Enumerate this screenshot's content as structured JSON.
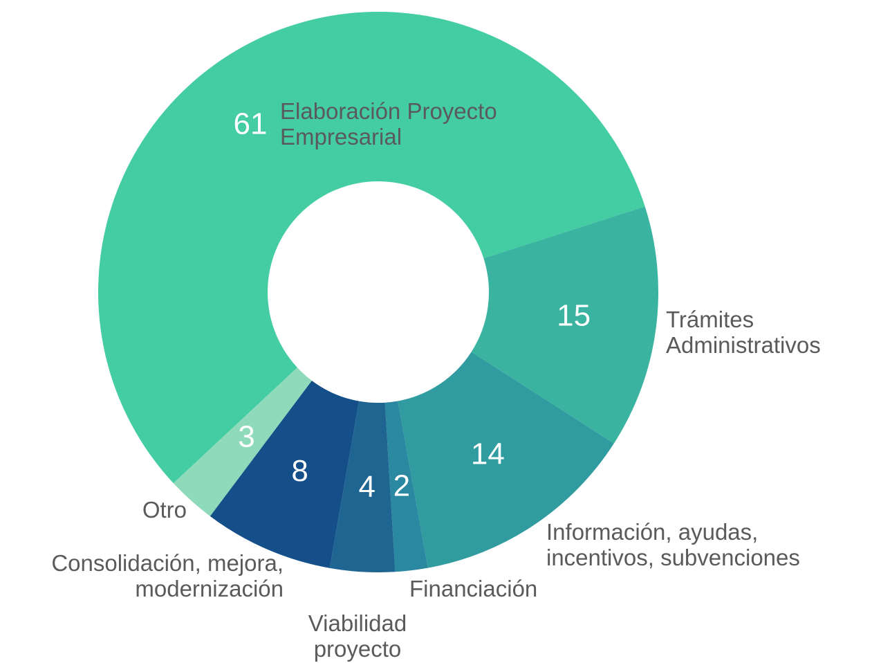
{
  "chart_data": {
    "type": "donut",
    "categories": [
      "Elaboración Proyecto Empresarial",
      "Trámites Administrativos",
      "Información, ayudas, incentivos, subvenciones",
      "Financiación",
      "Viabilidad proyecto",
      "Consolidación, mejora, modernización",
      "Otro"
    ],
    "values": [
      61,
      15,
      14,
      2,
      4,
      8,
      3
    ],
    "colors": [
      "#44cda2",
      "#3ab3a0",
      "#309ca0",
      "#2a88a0",
      "#1f6591",
      "#154f8a",
      "#8fdabb"
    ]
  }
}
